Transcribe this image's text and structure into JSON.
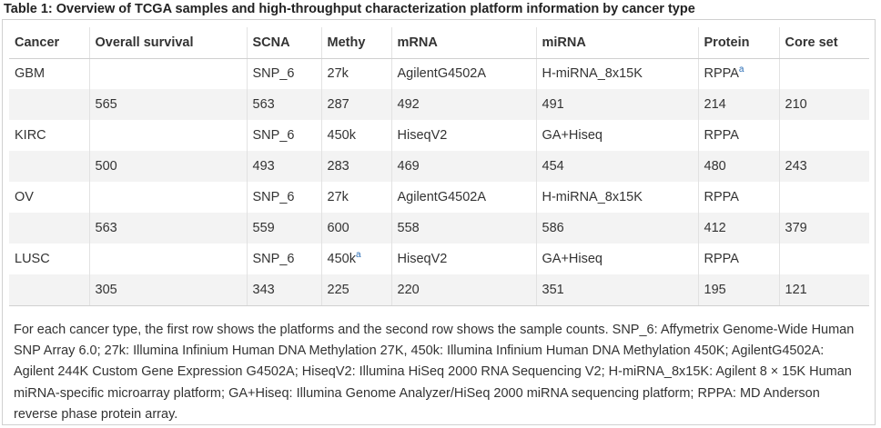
{
  "caption": "Table 1: Overview of TCGA samples and high-throughput characterization platform information by cancer type",
  "headers": [
    "Cancer",
    "Overall survival",
    "SCNA",
    "Methy",
    "mRNA",
    "miRNA",
    "Protein",
    "Core set"
  ],
  "rows": [
    {
      "cancer": "GBM",
      "survival": "",
      "scna": "SNP_6",
      "methy": "27k",
      "methy_sup": "",
      "mrna": "AgilentG4502A",
      "mirna": "H-miRNA_8x15K",
      "protein": "RPPA",
      "protein_sup": "a",
      "core": ""
    },
    {
      "cancer": "",
      "survival": "565",
      "scna": "563",
      "methy": "287",
      "methy_sup": "",
      "mrna": "492",
      "mirna": "491",
      "protein": "214",
      "protein_sup": "",
      "core": "210"
    },
    {
      "cancer": "KIRC",
      "survival": "",
      "scna": "SNP_6",
      "methy": "450k",
      "methy_sup": "",
      "mrna": "HiseqV2",
      "mirna": "GA+Hiseq",
      "protein": "RPPA",
      "protein_sup": "",
      "core": ""
    },
    {
      "cancer": "",
      "survival": "500",
      "scna": "493",
      "methy": "283",
      "methy_sup": "",
      "mrna": "469",
      "mirna": "454",
      "protein": "480",
      "protein_sup": "",
      "core": "243"
    },
    {
      "cancer": "OV",
      "survival": "",
      "scna": "SNP_6",
      "methy": "27k",
      "methy_sup": "",
      "mrna": "AgilentG4502A",
      "mirna": "H-miRNA_8x15K",
      "protein": "RPPA",
      "protein_sup": "",
      "core": ""
    },
    {
      "cancer": "",
      "survival": "563",
      "scna": "559",
      "methy": "600",
      "methy_sup": "",
      "mrna": "558",
      "mirna": "586",
      "protein": "412",
      "protein_sup": "",
      "core": "379"
    },
    {
      "cancer": "LUSC",
      "survival": "",
      "scna": "SNP_6",
      "methy": "450k",
      "methy_sup": "a",
      "mrna": "HiseqV2",
      "mirna": "GA+Hiseq",
      "protein": "RPPA",
      "protein_sup": "",
      "core": ""
    },
    {
      "cancer": "",
      "survival": "305",
      "scna": "343",
      "methy": "225",
      "methy_sup": "",
      "mrna": "220",
      "mirna": "351",
      "protein": "195",
      "protein_sup": "",
      "core": "121"
    }
  ],
  "footnote": "For each cancer type, the first row shows the platforms and the second row shows the sample counts. SNP_6: Affymetrix Genome-Wide Human SNP Array 6.0; 27k: Illumina Infinium Human DNA Methylation 27K, 450k: Illumina Infinium Human DNA Methylation 450K; AgilentG4502A: Agilent 244K Custom Gene Expression G4502A; HiseqV2: Illumina HiSeq 2000 RNA Sequencing V2; H-miRNA_8x15K: Agilent 8 × 15K Human miRNA-specific microarray platform; GA+Hiseq: Illumina Genome Analyzer/HiSeq 2000 miRNA sequencing platform; RPPA: MD Anderson reverse phase protein array.",
  "colors": {
    "accent": "#2a6db5",
    "stripe": "#f3f3f3",
    "border": "#d0d0d0"
  }
}
